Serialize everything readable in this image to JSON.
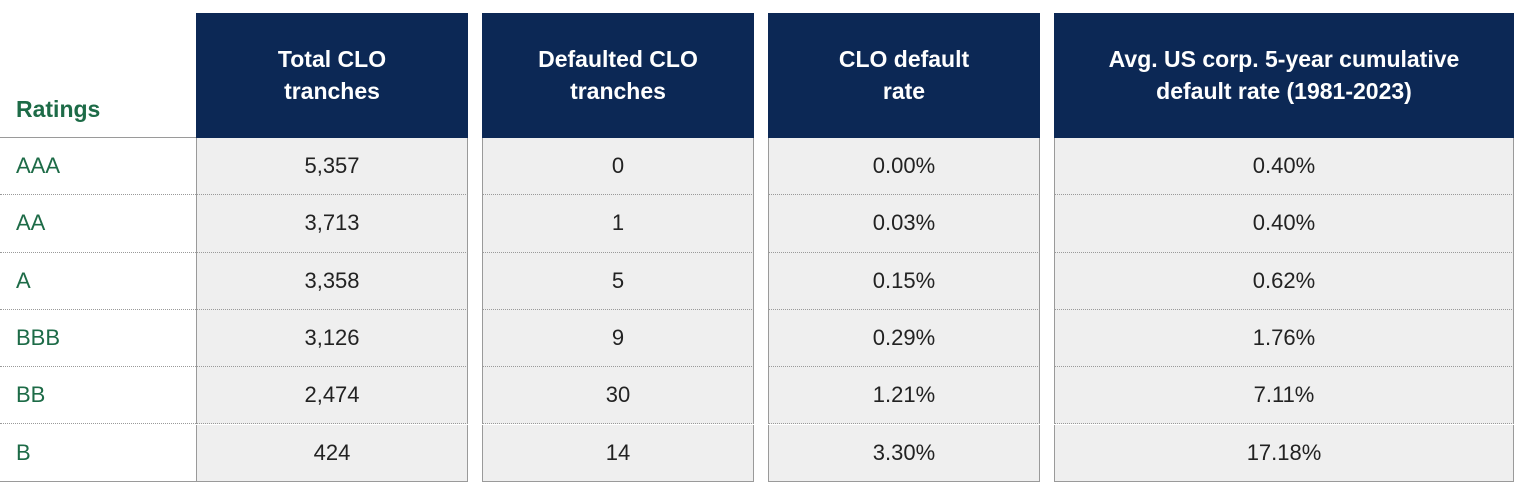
{
  "table": {
    "headers": [
      "Ratings",
      "Total CLO tranches",
      "Defaulted CLO tranches",
      "CLO default rate",
      "Avg. US corp. 5-year cumulative default rate (1981-2023)"
    ],
    "rows": [
      [
        "AAA",
        "5,357",
        "0",
        "0.00%",
        "0.40%"
      ],
      [
        "AA",
        "3,713",
        "1",
        "0.03%",
        "0.40%"
      ],
      [
        "A",
        "3,358",
        "5",
        "0.15%",
        "0.62%"
      ],
      [
        "BBB",
        "3,126",
        "9",
        "0.29%",
        "1.76%"
      ],
      [
        "BB",
        "2,474",
        "30",
        "1.21%",
        "7.11%"
      ],
      [
        "B",
        "424",
        "14",
        "3.30%",
        "17.18%"
      ]
    ]
  }
}
